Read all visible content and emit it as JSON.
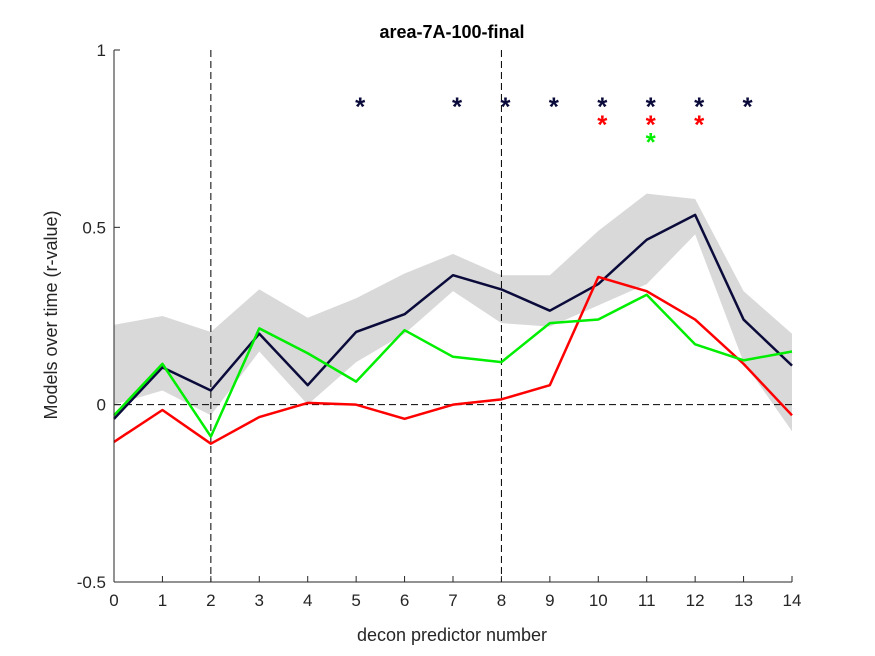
{
  "chart_data": {
    "type": "line",
    "title": "area-7A-100-final",
    "xlabel": "decon predictor number",
    "ylabel": "Models over time (r-value)",
    "xlim": [
      0,
      14
    ],
    "ylim": [
      -0.5,
      1
    ],
    "x_ticks": [
      0,
      1,
      2,
      3,
      4,
      5,
      6,
      7,
      8,
      9,
      10,
      11,
      12,
      13,
      14
    ],
    "y_ticks": [
      -0.5,
      0,
      0.5,
      1
    ],
    "y_tick_labels": [
      "-0.5",
      "0",
      "0.5",
      "1"
    ],
    "grid": false,
    "vertical_reference_lines": [
      2,
      8
    ],
    "horizontal_reference_line": 0,
    "x": [
      0,
      1,
      2,
      3,
      4,
      5,
      6,
      7,
      8,
      9,
      10,
      11,
      12,
      13,
      14
    ],
    "series": [
      {
        "color": "#0b0b3b",
        "values": [
          -0.04,
          0.105,
          0.04,
          0.2,
          0.055,
          0.205,
          0.255,
          0.365,
          0.325,
          0.265,
          0.34,
          0.465,
          0.535,
          0.24,
          0.11
        ],
        "band_upper": [
          0.225,
          0.25,
          0.205,
          0.325,
          0.245,
          0.3,
          0.37,
          0.425,
          0.365,
          0.365,
          0.49,
          0.595,
          0.58,
          0.32,
          0.2
        ],
        "band_lower": [
          0.0,
          0.04,
          -0.03,
          0.15,
          0.0,
          0.12,
          0.2,
          0.32,
          0.23,
          0.22,
          0.28,
          0.34,
          0.48,
          0.12,
          -0.075
        ]
      },
      {
        "color": "#ff0000",
        "values": [
          -0.105,
          -0.015,
          -0.11,
          -0.035,
          0.005,
          0.0,
          -0.04,
          0.0,
          0.015,
          0.055,
          0.36,
          0.32,
          0.24,
          0.115,
          -0.03
        ]
      },
      {
        "color": "#00ee00",
        "values": [
          -0.03,
          0.115,
          -0.09,
          0.215,
          0.145,
          0.065,
          0.21,
          0.135,
          0.12,
          0.23,
          0.24,
          0.31,
          0.17,
          0.125,
          0.15
        ]
      }
    ],
    "significance_markers": [
      {
        "color": "#0b0b3b",
        "y": 0.86,
        "x": [
          5,
          7,
          8,
          9,
          10,
          11,
          12,
          13
        ],
        "symbol": "*"
      },
      {
        "color": "#ff0000",
        "y": 0.81,
        "x": [
          10,
          11,
          12
        ],
        "symbol": "*"
      },
      {
        "color": "#00ee00",
        "y": 0.76,
        "x": [
          11
        ],
        "symbol": "*"
      }
    ]
  },
  "colors": {
    "band": "#d9d9d9",
    "axis": "#262626",
    "reference_line": "#000000"
  }
}
